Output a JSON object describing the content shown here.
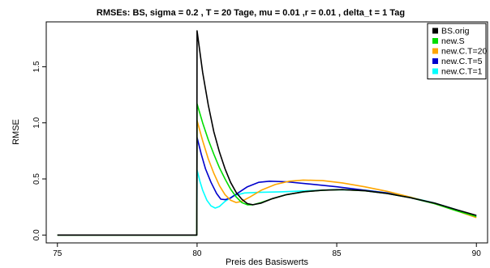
{
  "chart_data": {
    "type": "line",
    "title": "RMSEs: BS,  sigma = 0.2 , T = 20 Tage, mu = 0.01 ,r = 0.01 , delta_t = 1 Tag",
    "xlabel": "Preis des Basiswerts",
    "ylabel": "RMSE",
    "xlim": [
      74.6,
      90.4
    ],
    "ylim": [
      -0.07,
      1.9
    ],
    "x_ticks": [
      75,
      80,
      85,
      90
    ],
    "x_tick_labels": [
      "75",
      "80",
      "85",
      "90"
    ],
    "y_ticks": [
      0.0,
      0.5,
      1.0,
      1.5
    ],
    "y_tick_labels": [
      "0.0",
      "0.5",
      "1.0",
      "1.5"
    ],
    "grid": false,
    "legend_position": "top-right",
    "series": [
      {
        "name": "BS.orig",
        "color": "#000000",
        "points": [
          [
            75,
            0
          ],
          [
            79.99,
            0
          ],
          [
            80,
            1.82
          ],
          [
            80.2,
            1.45
          ],
          [
            80.4,
            1.16
          ],
          [
            80.6,
            0.92
          ],
          [
            80.8,
            0.74
          ],
          [
            81,
            0.59
          ],
          [
            81.2,
            0.47
          ],
          [
            81.4,
            0.38
          ],
          [
            81.6,
            0.32
          ],
          [
            81.8,
            0.28
          ],
          [
            82,
            0.27
          ],
          [
            82.3,
            0.285
          ],
          [
            82.7,
            0.325
          ],
          [
            83.2,
            0.36
          ],
          [
            83.8,
            0.385
          ],
          [
            84.5,
            0.4
          ],
          [
            85.2,
            0.405
          ],
          [
            86,
            0.395
          ],
          [
            86.8,
            0.37
          ],
          [
            87.6,
            0.335
          ],
          [
            88.5,
            0.285
          ],
          [
            89.3,
            0.225
          ],
          [
            90,
            0.175
          ]
        ]
      },
      {
        "name": "new.S",
        "color": "#00dd00",
        "points": [
          [
            75,
            0
          ],
          [
            79.99,
            0
          ],
          [
            80,
            1.17
          ],
          [
            80.2,
            1.0
          ],
          [
            80.4,
            0.85
          ],
          [
            80.6,
            0.72
          ],
          [
            80.8,
            0.6
          ],
          [
            81,
            0.5
          ],
          [
            81.2,
            0.41
          ],
          [
            81.4,
            0.34
          ],
          [
            81.6,
            0.29
          ],
          [
            81.8,
            0.27
          ],
          [
            82,
            0.27
          ],
          [
            82.3,
            0.29
          ],
          [
            82.7,
            0.325
          ],
          [
            83.2,
            0.36
          ],
          [
            83.8,
            0.385
          ],
          [
            84.5,
            0.4
          ],
          [
            85.2,
            0.405
          ],
          [
            86,
            0.395
          ],
          [
            86.8,
            0.37
          ],
          [
            87.6,
            0.335
          ],
          [
            88.5,
            0.28
          ],
          [
            89.3,
            0.215
          ],
          [
            90,
            0.165
          ]
        ]
      },
      {
        "name": "new.C.T=20",
        "color": "#ffa500",
        "points": [
          [
            75,
            0
          ],
          [
            79.99,
            0
          ],
          [
            80,
            1.02
          ],
          [
            80.2,
            0.84
          ],
          [
            80.4,
            0.68
          ],
          [
            80.6,
            0.55
          ],
          [
            80.8,
            0.44
          ],
          [
            81,
            0.36
          ],
          [
            81.2,
            0.31
          ],
          [
            81.4,
            0.29
          ],
          [
            81.6,
            0.3
          ],
          [
            81.9,
            0.34
          ],
          [
            82.3,
            0.4
          ],
          [
            82.8,
            0.45
          ],
          [
            83.3,
            0.48
          ],
          [
            83.8,
            0.49
          ],
          [
            84.5,
            0.485
          ],
          [
            85.2,
            0.465
          ],
          [
            86,
            0.43
          ],
          [
            86.8,
            0.39
          ],
          [
            87.6,
            0.34
          ],
          [
            88.5,
            0.28
          ],
          [
            89.3,
            0.215
          ],
          [
            90,
            0.155
          ]
        ]
      },
      {
        "name": "new.C.T=5",
        "color": "#0000cc",
        "points": [
          [
            75,
            0
          ],
          [
            79.99,
            0
          ],
          [
            80,
            0.87
          ],
          [
            80.15,
            0.72
          ],
          [
            80.3,
            0.59
          ],
          [
            80.5,
            0.47
          ],
          [
            80.7,
            0.37
          ],
          [
            80.85,
            0.32
          ],
          [
            81,
            0.315
          ],
          [
            81.2,
            0.33
          ],
          [
            81.5,
            0.38
          ],
          [
            81.8,
            0.43
          ],
          [
            82.2,
            0.47
          ],
          [
            82.6,
            0.48
          ],
          [
            83.2,
            0.475
          ],
          [
            84,
            0.455
          ],
          [
            85,
            0.43
          ],
          [
            86,
            0.4
          ],
          [
            86.8,
            0.375
          ],
          [
            87.6,
            0.335
          ],
          [
            88.5,
            0.28
          ],
          [
            89.3,
            0.22
          ],
          [
            90,
            0.165
          ]
        ]
      },
      {
        "name": "new.C.T=1",
        "color": "#00ffff",
        "points": [
          [
            75,
            0
          ],
          [
            79.99,
            0
          ],
          [
            80,
            0.58
          ],
          [
            80.1,
            0.48
          ],
          [
            80.2,
            0.4
          ],
          [
            80.35,
            0.31
          ],
          [
            80.5,
            0.26
          ],
          [
            80.65,
            0.24
          ],
          [
            80.8,
            0.255
          ],
          [
            81,
            0.3
          ],
          [
            81.3,
            0.35
          ],
          [
            81.7,
            0.375
          ],
          [
            82.2,
            0.38
          ],
          [
            83,
            0.385
          ],
          [
            84,
            0.395
          ],
          [
            85,
            0.405
          ],
          [
            86,
            0.4
          ],
          [
            86.8,
            0.375
          ],
          [
            87.6,
            0.34
          ],
          [
            88.5,
            0.285
          ],
          [
            89.3,
            0.225
          ],
          [
            90,
            0.17
          ]
        ]
      }
    ]
  }
}
